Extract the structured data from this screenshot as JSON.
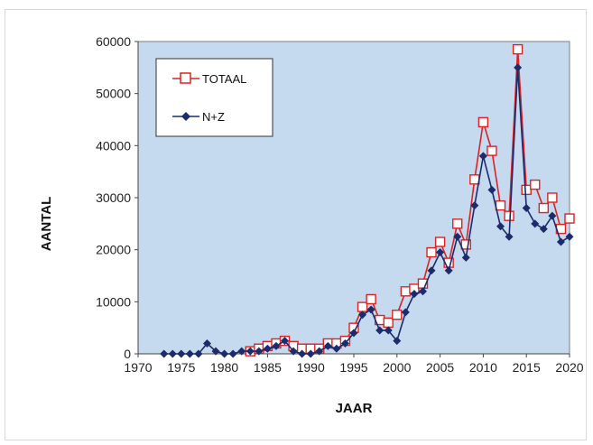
{
  "chart_data": {
    "type": "line",
    "title": "",
    "xlabel": "JAAR",
    "ylabel": "AANTAL",
    "xlim": [
      1970,
      2020
    ],
    "ylim": [
      0,
      60000
    ],
    "xticks": [
      1970,
      1975,
      1980,
      1985,
      1990,
      1995,
      2000,
      2005,
      2010,
      2015,
      2020
    ],
    "yticks": [
      0,
      10000,
      20000,
      30000,
      40000,
      50000,
      60000
    ],
    "grid": false,
    "plot_background": "#c5d9ef",
    "legend_position": "top-left",
    "series": [
      {
        "name": "TOTAAL",
        "color": "#dd2222",
        "marker": "open-square",
        "x": [
          1983,
          1984,
          1985,
          1986,
          1987,
          1988,
          1989,
          1990,
          1991,
          1992,
          1993,
          1994,
          1995,
          1996,
          1997,
          1998,
          1999,
          2000,
          2001,
          2002,
          2003,
          2004,
          2005,
          2006,
          2007,
          2008,
          2009,
          2010,
          2011,
          2012,
          2013,
          2014,
          2015,
          2016,
          2017,
          2018,
          2019,
          2020
        ],
        "y": [
          500,
          1000,
          1500,
          2000,
          2500,
          1500,
          1000,
          1000,
          1000,
          2000,
          2000,
          2500,
          5000,
          9000,
          10500,
          6500,
          6000,
          7500,
          12000,
          12500,
          13500,
          19500,
          21500,
          17500,
          25000,
          21000,
          33500,
          44500,
          39000,
          28500,
          26500,
          58500,
          31500,
          32500,
          28000,
          30000,
          24000,
          26000
        ]
      },
      {
        "name": "N+Z",
        "color": "#1b2b6b",
        "marker": "filled-diamond",
        "x": [
          1973,
          1974,
          1975,
          1976,
          1977,
          1978,
          1979,
          1980,
          1981,
          1982,
          1983,
          1984,
          1985,
          1986,
          1987,
          1988,
          1989,
          1990,
          1991,
          1992,
          1993,
          1994,
          1995,
          1996,
          1997,
          1998,
          1999,
          2000,
          2001,
          2002,
          2003,
          2004,
          2005,
          2006,
          2007,
          2008,
          2009,
          2010,
          2011,
          2012,
          2013,
          2014,
          2015,
          2016,
          2017,
          2018,
          2019,
          2020
        ],
        "y": [
          0,
          0,
          0,
          0,
          0,
          2000,
          500,
          0,
          0,
          500,
          500,
          500,
          1000,
          1500,
          2500,
          500,
          0,
          0,
          500,
          1500,
          1000,
          2000,
          4000,
          7500,
          8500,
          4500,
          4500,
          2500,
          8000,
          11500,
          12000,
          16000,
          19500,
          16000,
          22500,
          18500,
          28500,
          38000,
          31500,
          24500,
          22500,
          55000,
          28000,
          25000,
          24000,
          26500,
          21500,
          22500
        ]
      }
    ]
  }
}
